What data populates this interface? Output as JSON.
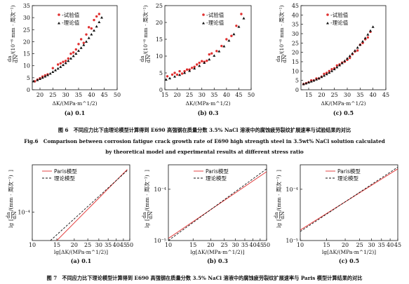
{
  "charts_top": [
    {
      "id": "a",
      "sub_label": "(a) 0.1",
      "xlabel": "ΔK/(MPa·m^1/2)",
      "ylabel_top": "da",
      "ylabel_bottom": "dN",
      "ylabel_unit": "/(10⁻⁶ mm · 周次⁻¹)",
      "xlim": [
        17,
        50
      ],
      "ylim": [
        0,
        35
      ],
      "xticks": [
        20,
        25,
        30,
        35,
        40,
        45,
        50
      ],
      "yticks": [
        0,
        5,
        10,
        15,
        20,
        25,
        30,
        35
      ],
      "legend": [
        "试验值",
        "理论值"
      ]
    },
    {
      "id": "b",
      "sub_label": "(b) 0.3",
      "xlabel": "ΔK/(MPa·m^1/2)",
      "ylabel_top": "da",
      "ylabel_bottom": "dN",
      "ylabel_unit": "/(10⁻⁶ mm · 周次⁻¹)",
      "xlim": [
        15,
        50
      ],
      "ylim": [
        0,
        25
      ],
      "xticks": [
        15,
        20,
        25,
        30,
        35,
        40,
        45,
        50
      ],
      "yticks": [
        0,
        5,
        10,
        15,
        20,
        25
      ],
      "legend": [
        "试验值",
        "理论值"
      ]
    },
    {
      "id": "c",
      "sub_label": "(c) 0.5",
      "xlabel": "ΔK/(MPa·m^1/2)",
      "ylabel_top": "da",
      "ylabel_bottom": "dN",
      "ylabel_unit": "/(10⁻⁶ mm · 周次⁻¹)",
      "xlim": [
        12,
        45
      ],
      "ylim": [
        0,
        45
      ],
      "xticks": [
        15,
        20,
        25,
        30,
        35,
        40,
        45
      ],
      "yticks": [
        0,
        5,
        10,
        15,
        20,
        25,
        30,
        35,
        40,
        45
      ],
      "legend": [
        "试验值",
        "理论值"
      ]
    }
  ],
  "caption6": {
    "cn": "图 6　不同应力比下由理论模型计算得到 E690 高强钢在质量分数 3.5% NaCl 溶液中的腐蚀疲劳裂纹扩展速率与试验结果的对比",
    "en1": "Fig.6　Comparison between corrosion fatigue crack growth rate of E690 high strength steel in 3.5wt% NaCl solution calculated",
    "en2": "by theoretical model and experimental results at different stress ratio"
  },
  "charts_bottom": [
    {
      "id": "a",
      "sub_label": "(a) 0.1",
      "xlabel": "lg[ΔK/(MPa·m^1/2)]",
      "ylabel_outer": "lg",
      "ylabel_top": "da",
      "ylabel_bottom": "dN",
      "ylabel_unit": "/(mm · 周次⁻¹)",
      "xticks": [
        "10",
        "15",
        "20",
        "25",
        "30",
        "35",
        "40",
        "45",
        "50"
      ],
      "ytick": "10⁻⁴",
      "legend": [
        "Paris模型",
        "理论模型"
      ]
    },
    {
      "id": "b",
      "sub_label": "(b) 0.3",
      "xlabel": "lg[ΔK/(MPa·m^1/2)]",
      "ylabel_outer": "lg",
      "ylabel_top": "da",
      "ylabel_bottom": "dN",
      "ylabel_unit": "/(mm · 周次⁻¹)",
      "xticks": [
        "10",
        "15",
        "20",
        "25",
        "30",
        "35",
        "40",
        "45",
        "50"
      ],
      "yticks": [
        "10⁻⁴",
        "10⁻⁵"
      ],
      "legend": [
        "Paris模型",
        "理论模型"
      ]
    },
    {
      "id": "c",
      "sub_label": "(c) 0.5",
      "xlabel": "lg[ΔK/(MPa·m^1/2)]",
      "ylabel_outer": "lg",
      "ylabel_top": "da",
      "ylabel_bottom": "dN",
      "ylabel_unit": "/(mm · 周次⁻¹)",
      "xticks": [
        "10",
        "15",
        "20",
        "25",
        "30",
        "35",
        "40",
        "45"
      ],
      "yticks": [
        "10⁻⁴",
        "10⁻⁵"
      ],
      "legend": [
        "Paris模型",
        "理论模型"
      ]
    }
  ],
  "caption7": {
    "cn": "图 7　不同应力比下理论模型计算得到 E690 高强钢在质量分数 3.5% NaCl 溶液中的腐蚀疲劳裂纹扩展速率与 Paris 模型计算结果的对比"
  },
  "chart_data": [
    {
      "type": "scatter",
      "panel": "Fig6(a) 0.1",
      "xlim": [
        17,
        50
      ],
      "ylim": [
        0,
        35
      ],
      "series": [
        {
          "name": "试验值",
          "color": "#e03030",
          "x": [
            18,
            19,
            20,
            21,
            22,
            23,
            25,
            27,
            28,
            29,
            30,
            31,
            32,
            33,
            34,
            35,
            36,
            37,
            38,
            39,
            40,
            41,
            42,
            43
          ],
          "y": [
            3.5,
            4.2,
            4.8,
            5.5,
            6,
            6.4,
            9,
            10.5,
            11,
            11.6,
            12,
            13,
            15,
            15.5,
            16.8,
            19,
            21,
            19.5,
            23,
            26,
            25.5,
            29,
            30.5,
            31.5
          ]
        },
        {
          "name": "理论值",
          "color": "#111111",
          "x": [
            17.5,
            19,
            20,
            21,
            22,
            23,
            24,
            25,
            26,
            27,
            28,
            29,
            30,
            31,
            32,
            33,
            34,
            35,
            36,
            37,
            38,
            39,
            40,
            41,
            42,
            43,
            44
          ],
          "y": [
            3.5,
            4,
            4.5,
            5,
            5.5,
            6.1,
            6.7,
            7.4,
            8.1,
            8.8,
            9.5,
            10.3,
            11.1,
            12,
            13,
            14,
            15,
            16.2,
            17.4,
            18.6,
            20,
            21.5,
            23,
            24.6,
            26.3,
            28.1,
            30
          ]
        }
      ]
    },
    {
      "type": "scatter",
      "panel": "Fig6(b) 0.3",
      "xlim": [
        15,
        50
      ],
      "ylim": [
        0,
        25
      ],
      "series": [
        {
          "name": "试验值",
          "color": "#e03030",
          "x": [
            16,
            18,
            19,
            20,
            21,
            22,
            23,
            24,
            25,
            26,
            27,
            28,
            29,
            30,
            31,
            32,
            33,
            34,
            36,
            38,
            40,
            42,
            44,
            46
          ],
          "y": [
            4,
            4.5,
            5,
            4.5,
            5.5,
            4.8,
            5.5,
            6,
            6,
            6.5,
            6.8,
            7.5,
            8,
            8.5,
            8.3,
            8.6,
            10.5,
            10.8,
            11.5,
            13,
            15,
            16,
            19,
            22.5
          ]
        },
        {
          "name": "理论值",
          "color": "#111111",
          "x": [
            15.5,
            17,
            19,
            21,
            23,
            25,
            27,
            29,
            31,
            33,
            35,
            37,
            39,
            41,
            43,
            45,
            47
          ],
          "y": [
            3,
            3.4,
            3.9,
            4.4,
            5,
            5.6,
            6.3,
            7.1,
            8,
            9,
            10.1,
            11.4,
            12.9,
            14.6,
            16.5,
            18.7,
            21.2
          ]
        }
      ]
    },
    {
      "type": "scatter",
      "panel": "Fig6(c) 0.5",
      "xlim": [
        12,
        45
      ],
      "ylim": [
        0,
        45
      ],
      "series": [
        {
          "name": "试验值",
          "color": "#e03030",
          "x": [
            13,
            14,
            15,
            16,
            17,
            18,
            19,
            20,
            21,
            22,
            23,
            24,
            25,
            26,
            27,
            28,
            29,
            30,
            31,
            32,
            33,
            34,
            35,
            36,
            37,
            38,
            39
          ],
          "y": [
            3,
            3.5,
            4,
            5,
            5,
            6,
            6,
            7,
            8.5,
            9,
            10,
            11,
            11.5,
            13,
            13.5,
            14.5,
            15,
            16,
            17,
            19,
            20.5,
            21,
            24,
            25,
            27,
            28,
            31
          ]
        },
        {
          "name": "理论值",
          "color": "#111111",
          "x": [
            13,
            14,
            15,
            16,
            17,
            18,
            19,
            20,
            21,
            22,
            23,
            24,
            25,
            26,
            27,
            28,
            29,
            30,
            31,
            32,
            33,
            34,
            35,
            36,
            37,
            38,
            39,
            40
          ],
          "y": [
            3,
            3.4,
            3.9,
            4.4,
            4.9,
            5.5,
            6.1,
            6.8,
            7.5,
            8.3,
            9.1,
            10,
            11,
            12,
            13.1,
            14.2,
            15.4,
            16.7,
            18,
            19.4,
            20.9,
            22.5,
            24.1,
            25.8,
            27.6,
            29.5,
            31.5,
            33.6
          ]
        }
      ]
    },
    {
      "type": "line",
      "panel": "Fig7(a) 0.1",
      "scale": "log-log",
      "xlim": [
        10,
        50
      ],
      "ylim": [
        2.5e-05,
        0.001
      ],
      "series": [
        {
          "name": "Paris模型",
          "color": "#e03030",
          "style": "solid",
          "x": [
            15,
            48
          ],
          "y": [
            2.5e-05,
            0.0008
          ]
        },
        {
          "name": "理论模型",
          "color": "#111111",
          "style": "dashed",
          "x": [
            13.5,
            48
          ],
          "y": [
            2.5e-05,
            0.00076
          ]
        }
      ]
    },
    {
      "type": "line",
      "panel": "Fig7(b) 0.3",
      "scale": "log-log",
      "xlim": [
        10,
        50
      ],
      "ylim": [
        1e-05,
        0.0003
      ],
      "series": [
        {
          "name": "Paris模型",
          "color": "#e03030",
          "style": "solid",
          "x": [
            10,
            50
          ],
          "y": [
            1.1e-05,
            0.00022
          ]
        },
        {
          "name": "理论模型",
          "color": "#111111",
          "style": "dashed",
          "x": [
            10,
            50
          ],
          "y": [
            1e-05,
            0.00025
          ]
        }
      ]
    },
    {
      "type": "line",
      "panel": "Fig7(c) 0.5",
      "scale": "log-log",
      "xlim": [
        10,
        45
      ],
      "ylim": [
        1e-05,
        0.0003
      ],
      "series": [
        {
          "name": "Paris模型",
          "color": "#e03030",
          "style": "solid",
          "x": [
            10,
            45
          ],
          "y": [
            1.6e-05,
            0.00025
          ]
        },
        {
          "name": "理论模型",
          "color": "#111111",
          "style": "dashed",
          "x": [
            10,
            45
          ],
          "y": [
            1.5e-05,
            0.00027
          ]
        }
      ]
    }
  ]
}
